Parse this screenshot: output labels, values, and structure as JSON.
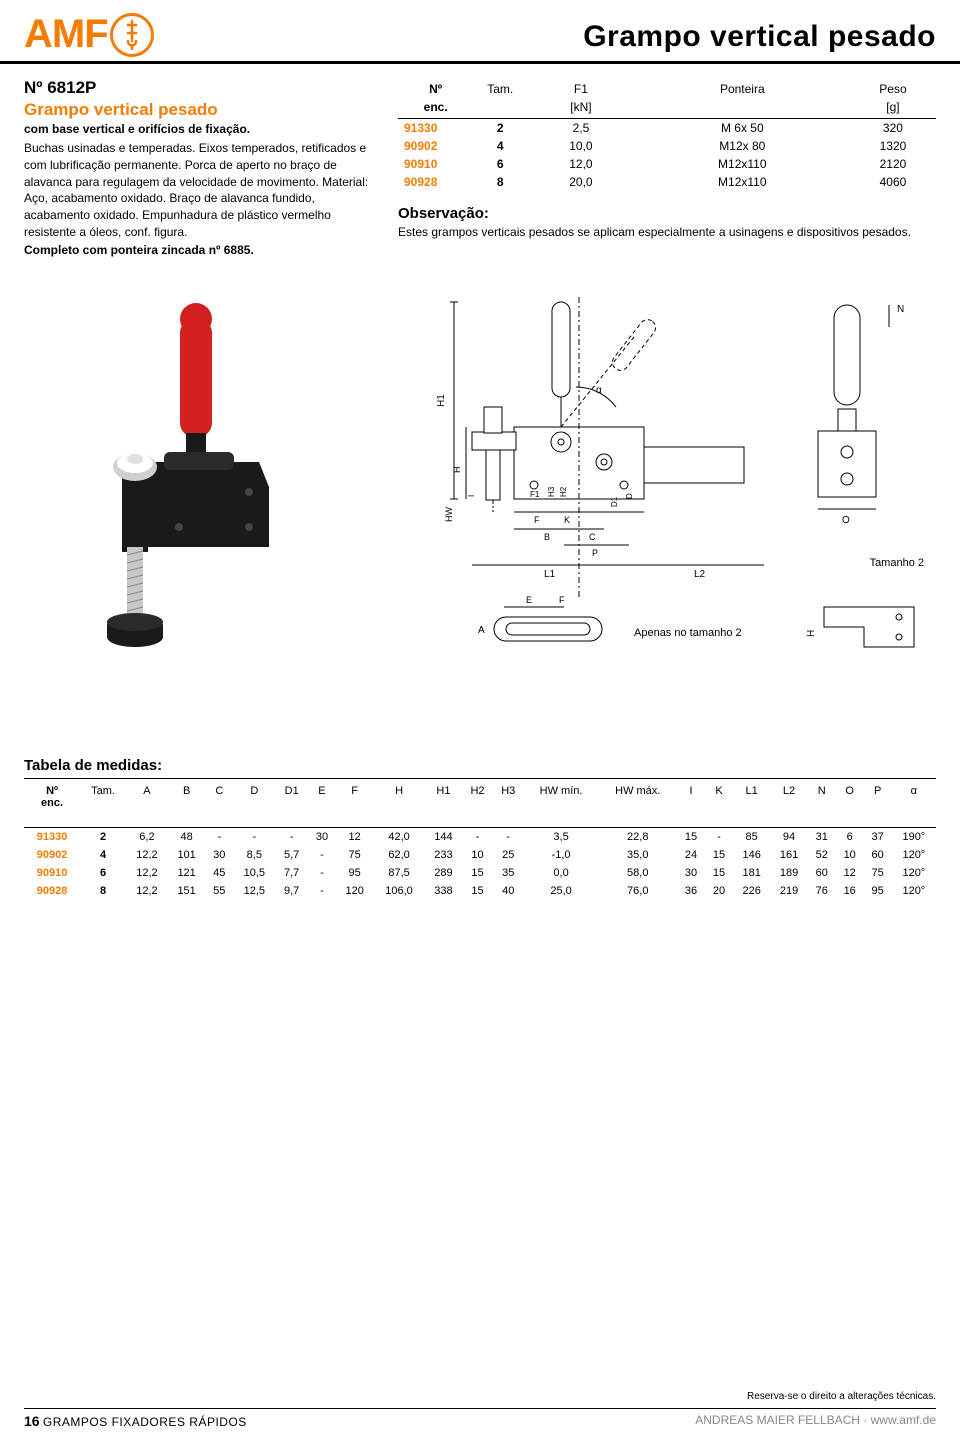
{
  "brand": "AMF",
  "page_title": "Grampo vertical pesado",
  "product": {
    "code": "Nº 6812P",
    "name": "Grampo vertical pesado",
    "subtitle": "com base vertical e orifícios de fixação.",
    "description": "Buchas usinadas e temperadas. Eixos temperados, retificados e com lubrificação permanente. Porca de aperto no braço de alavanca para regulagem da velocidade de movimento. Material: Aço, acabamento oxidado. Braço de alavanca fundido, acabamento oxidado. Empunhadura de plástico vermelho resistente a óleos, conf. figura.",
    "complete": "Completo com ponteira zincada nº 6885."
  },
  "spec_table": {
    "headers1": [
      "Nº",
      "Tam.",
      "F1",
      "Ponteira",
      "Peso"
    ],
    "headers2": [
      "enc.",
      "",
      "[kN]",
      "",
      "[g]"
    ],
    "rows": [
      [
        "91330",
        "2",
        "2,5",
        "M 6x 50",
        "320"
      ],
      [
        "90902",
        "4",
        "10,0",
        "M12x 80",
        "1320"
      ],
      [
        "90910",
        "6",
        "12,0",
        "M12x110",
        "2120"
      ],
      [
        "90928",
        "8",
        "20,0",
        "M12x110",
        "4060"
      ]
    ]
  },
  "observation": {
    "title": "Observação:",
    "text": "Estes grampos verticais pesados se aplicam especialmente a usinagens e dispositivos pesados."
  },
  "diagram": {
    "size2": "Tamanho 2",
    "only_size2": "Apenas no tamanho 2"
  },
  "dim_table": {
    "title": "Tabela de medidas:",
    "headers": [
      "Nº\nenc.",
      "Tam.",
      "A",
      "B",
      "C",
      "D",
      "D1",
      "E",
      "F",
      "H",
      "H1",
      "H2",
      "H3",
      "HW mín.",
      "HW máx.",
      "I",
      "K",
      "L1",
      "L2",
      "N",
      "O",
      "P",
      "α"
    ],
    "rows": [
      [
        "91330",
        "2",
        "6,2",
        "48",
        "-",
        "-",
        "-",
        "30",
        "12",
        "42,0",
        "144",
        "-",
        "-",
        "3,5",
        "22,8",
        "15",
        "-",
        "85",
        "94",
        "31",
        "6",
        "37",
        "190°"
      ],
      [
        "90902",
        "4",
        "12,2",
        "101",
        "30",
        "8,5",
        "5,7",
        "-",
        "75",
        "62,0",
        "233",
        "10",
        "25",
        "-1,0",
        "35,0",
        "24",
        "15",
        "146",
        "161",
        "52",
        "10",
        "60",
        "120°"
      ],
      [
        "90910",
        "6",
        "12,2",
        "121",
        "45",
        "10,5",
        "7,7",
        "-",
        "95",
        "87,5",
        "289",
        "15",
        "35",
        "0,0",
        "58,0",
        "30",
        "15",
        "181",
        "189",
        "60",
        "12",
        "75",
        "120°"
      ],
      [
        "90928",
        "8",
        "12,2",
        "151",
        "55",
        "12,5",
        "9,7",
        "-",
        "120",
        "106,0",
        "338",
        "15",
        "40",
        "25,0",
        "76,0",
        "36",
        "20",
        "226",
        "219",
        "76",
        "16",
        "95",
        "120°"
      ]
    ]
  },
  "footer": {
    "disclaimer": "Reserva-se o direito a alterações técnicas.",
    "page_num": "16",
    "category": "GRAMPOS FIXADORES RÁPIDOS",
    "company": "ANDREAS MAIER FELLBACH · www.amf.de"
  },
  "colors": {
    "accent": "#f57c00",
    "text": "#000000",
    "handle": "#d32020",
    "steel_dark": "#2a2a2a",
    "steel_light": "#b0b0b0"
  }
}
